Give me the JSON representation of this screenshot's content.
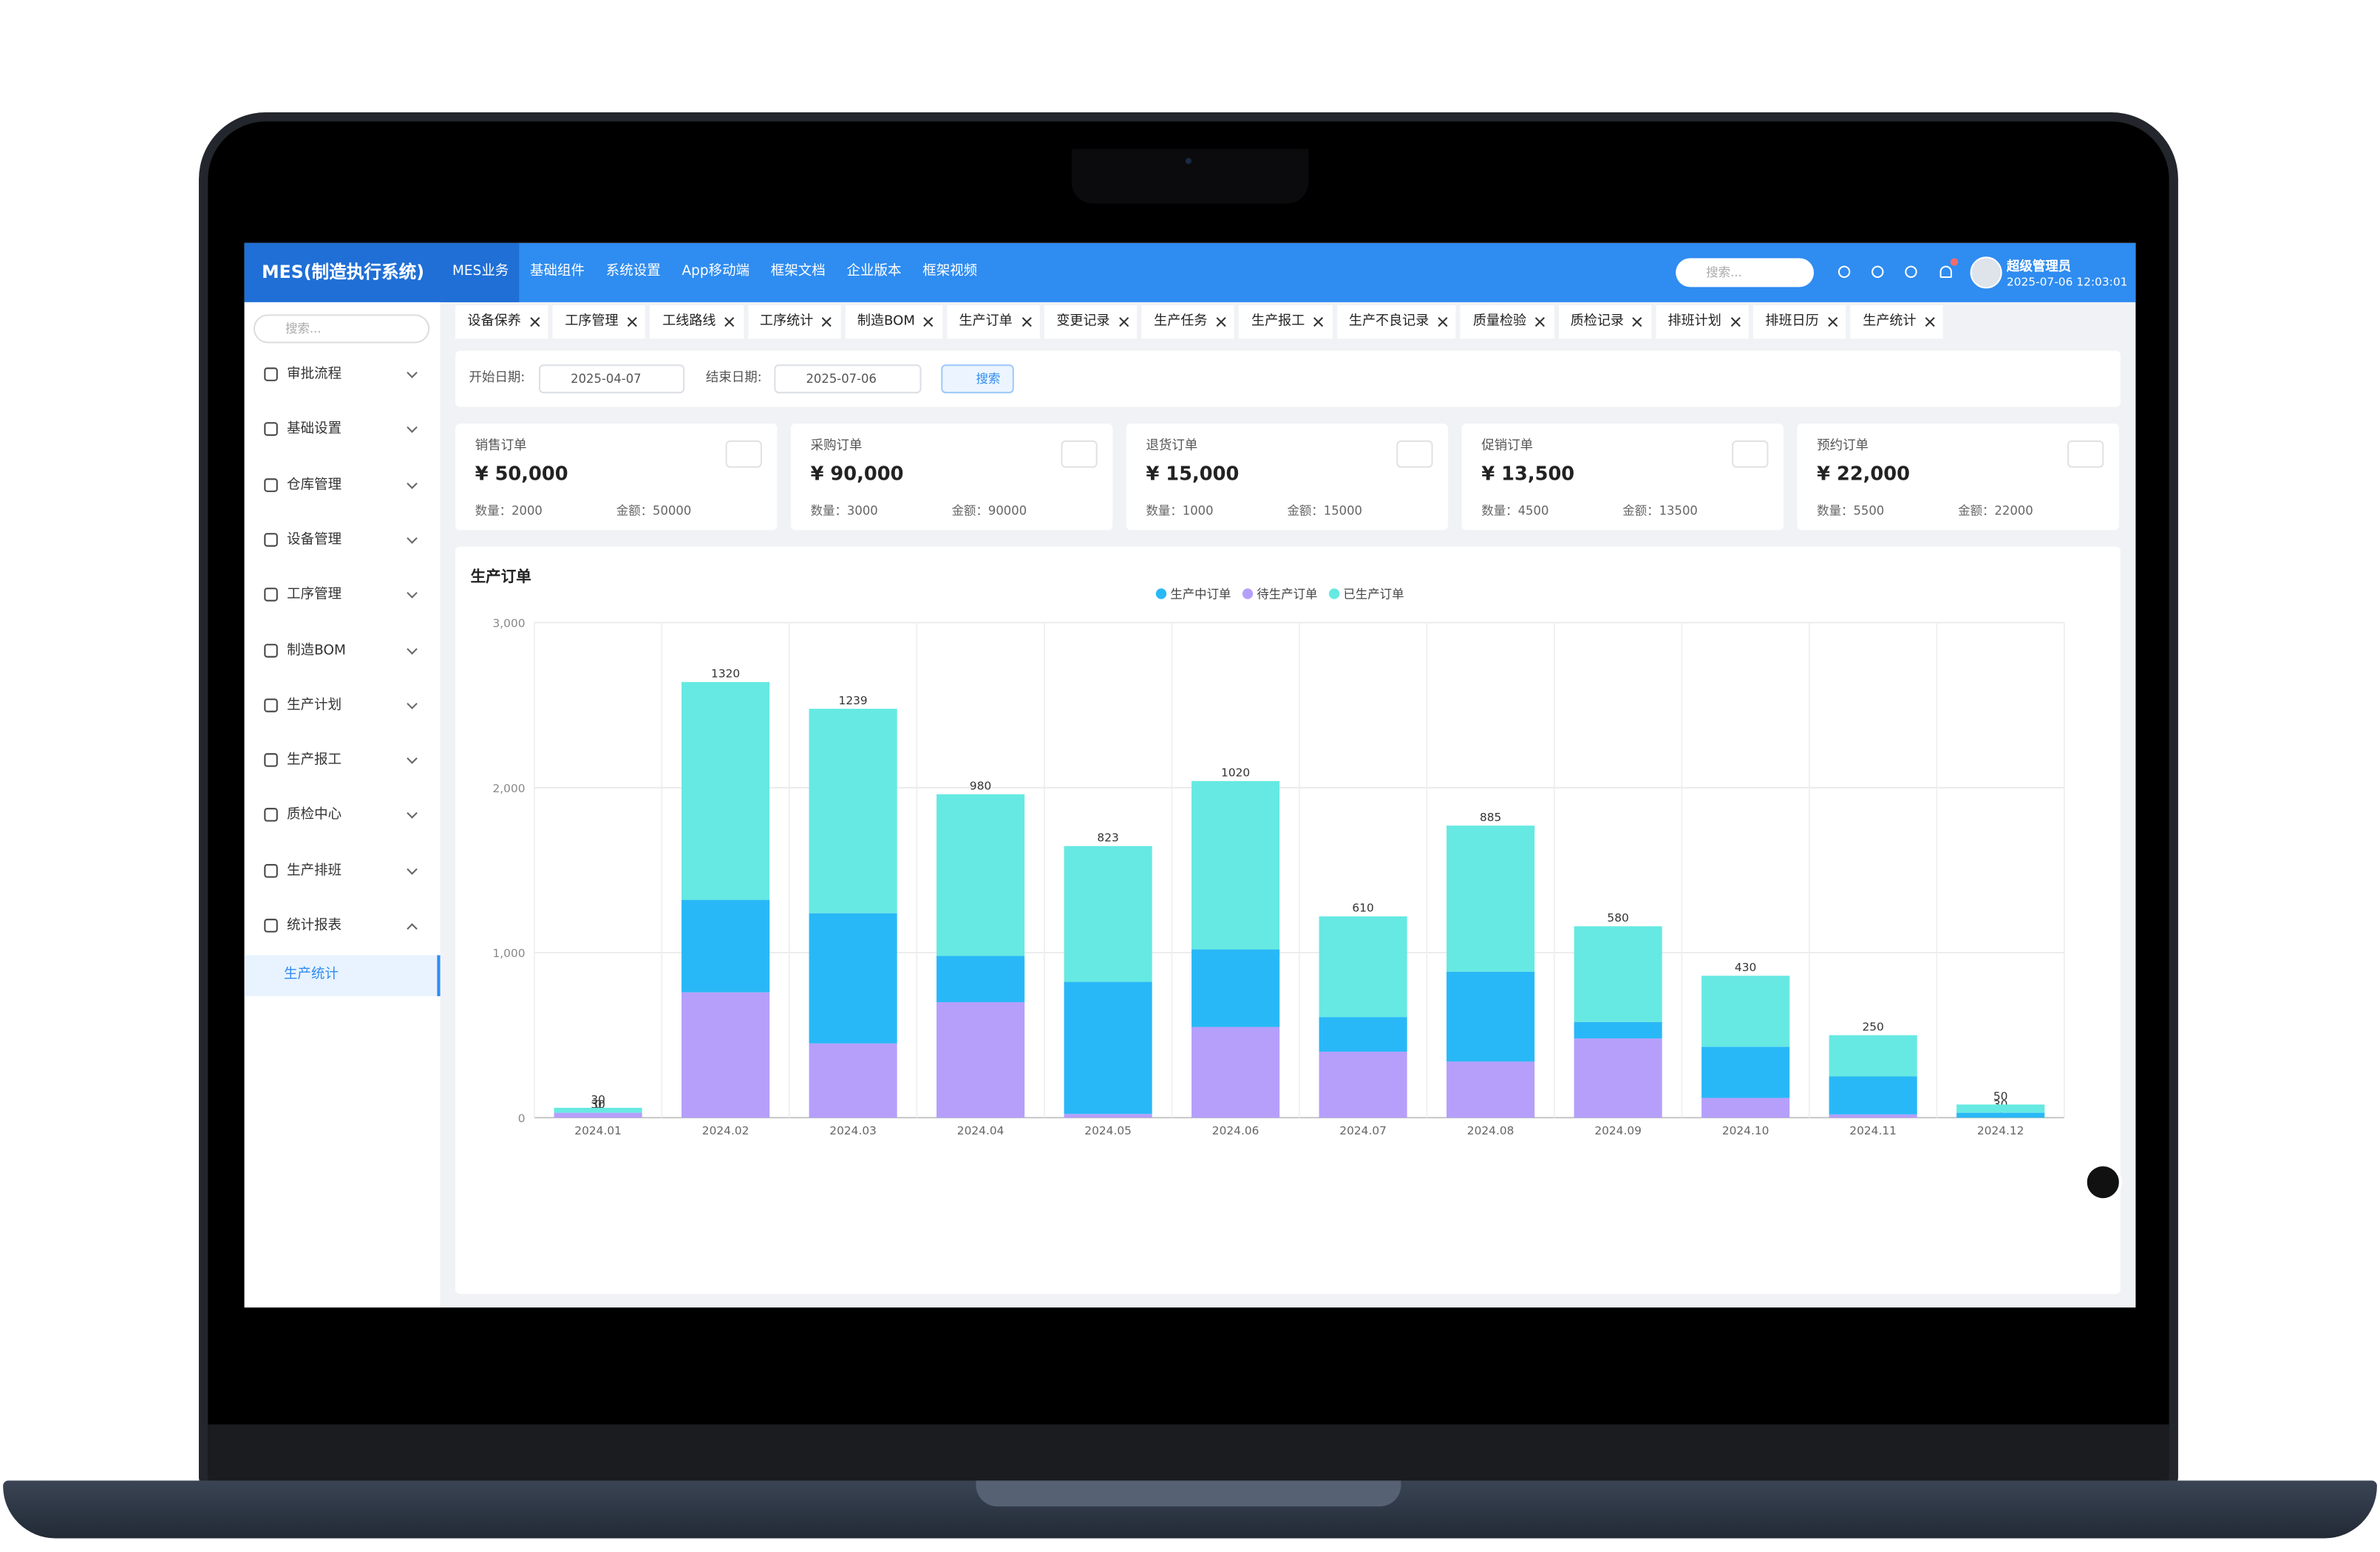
{
  "header": {
    "logo": "MES(制造执行系统)",
    "nav": [
      "MES业务",
      "基础组件",
      "系统设置",
      "App移动端",
      "框架文档",
      "企业版本",
      "框架视频"
    ],
    "search_placeholder": "搜索...",
    "user": "超级管理员",
    "datetime": "2025-07-06 12:03:01"
  },
  "sidebar": {
    "search_placeholder": "搜索...",
    "menu": [
      "审批流程",
      "基础设置",
      "仓库管理",
      "设备管理",
      "工序管理",
      "制造BOM",
      "生产计划",
      "生产报工",
      "质检中心",
      "生产排班",
      "统计报表"
    ],
    "submenu": [
      "生产统计"
    ]
  },
  "tabs": [
    "设备保养",
    "工序管理",
    "工线路线",
    "工序统计",
    "制造BOM",
    "生产订单",
    "变更记录",
    "生产任务",
    "生产报工",
    "生产不良记录",
    "质量检验",
    "质检记录",
    "排班计划",
    "排班日历",
    "生产统计"
  ],
  "filter": {
    "start_label": "开始日期:",
    "start": "2025-04-07",
    "end_label": "结束日期:",
    "end": "2025-07-06",
    "button": "搜索"
  },
  "cards": [
    {
      "title": "销售订单",
      "amount": "¥ 50,000",
      "count": "数量：2000",
      "sum": "金额：50000"
    },
    {
      "title": "采购订单",
      "amount": "¥ 90,000",
      "count": "数量：3000",
      "sum": "金额：90000"
    },
    {
      "title": "退货订单",
      "amount": "¥ 15,000",
      "count": "数量：1000",
      "sum": "金额：15000"
    },
    {
      "title": "促销订单",
      "amount": "¥ 13,500",
      "count": "数量：4500",
      "sum": "金额：13500"
    },
    {
      "title": "预约订单",
      "amount": "¥ 22,000",
      "count": "数量：5500",
      "sum": "金额：22000"
    }
  ],
  "chart_data": {
    "type": "bar",
    "stacked": true,
    "title": "生产订单",
    "categories": [
      "2024.01",
      "2024.02",
      "2024.03",
      "2024.04",
      "2024.05",
      "2024.06",
      "2024.07",
      "2024.08",
      "2024.09",
      "2024.10",
      "2024.11",
      "2024.12"
    ],
    "series": [
      {
        "name": "生产中订单",
        "color": "#29b8f7",
        "values": [
          0,
          560,
          789,
          280,
          800,
          470,
          210,
          545,
          100,
          310,
          230,
          30
        ]
      },
      {
        "name": "待生产订单",
        "color": "#b59ffb",
        "values": [
          30,
          760,
          450,
          700,
          23,
          550,
          400,
          340,
          480,
          120,
          20,
          0
        ]
      },
      {
        "name": "已生产订单",
        "color": "#66e9e2",
        "values": [
          30,
          1320,
          1239,
          980,
          823,
          1020,
          610,
          885,
          580,
          430,
          250,
          50
        ]
      }
    ],
    "ylim": [
      0,
      3000
    ],
    "yticks": [
      0,
      {
        "value": 1000,
        "label": "1,000"
      },
      {
        "value": 2000,
        "label": "2,000"
      },
      {
        "value": 3000,
        "label": "3,000"
      }
    ],
    "grid": true
  }
}
